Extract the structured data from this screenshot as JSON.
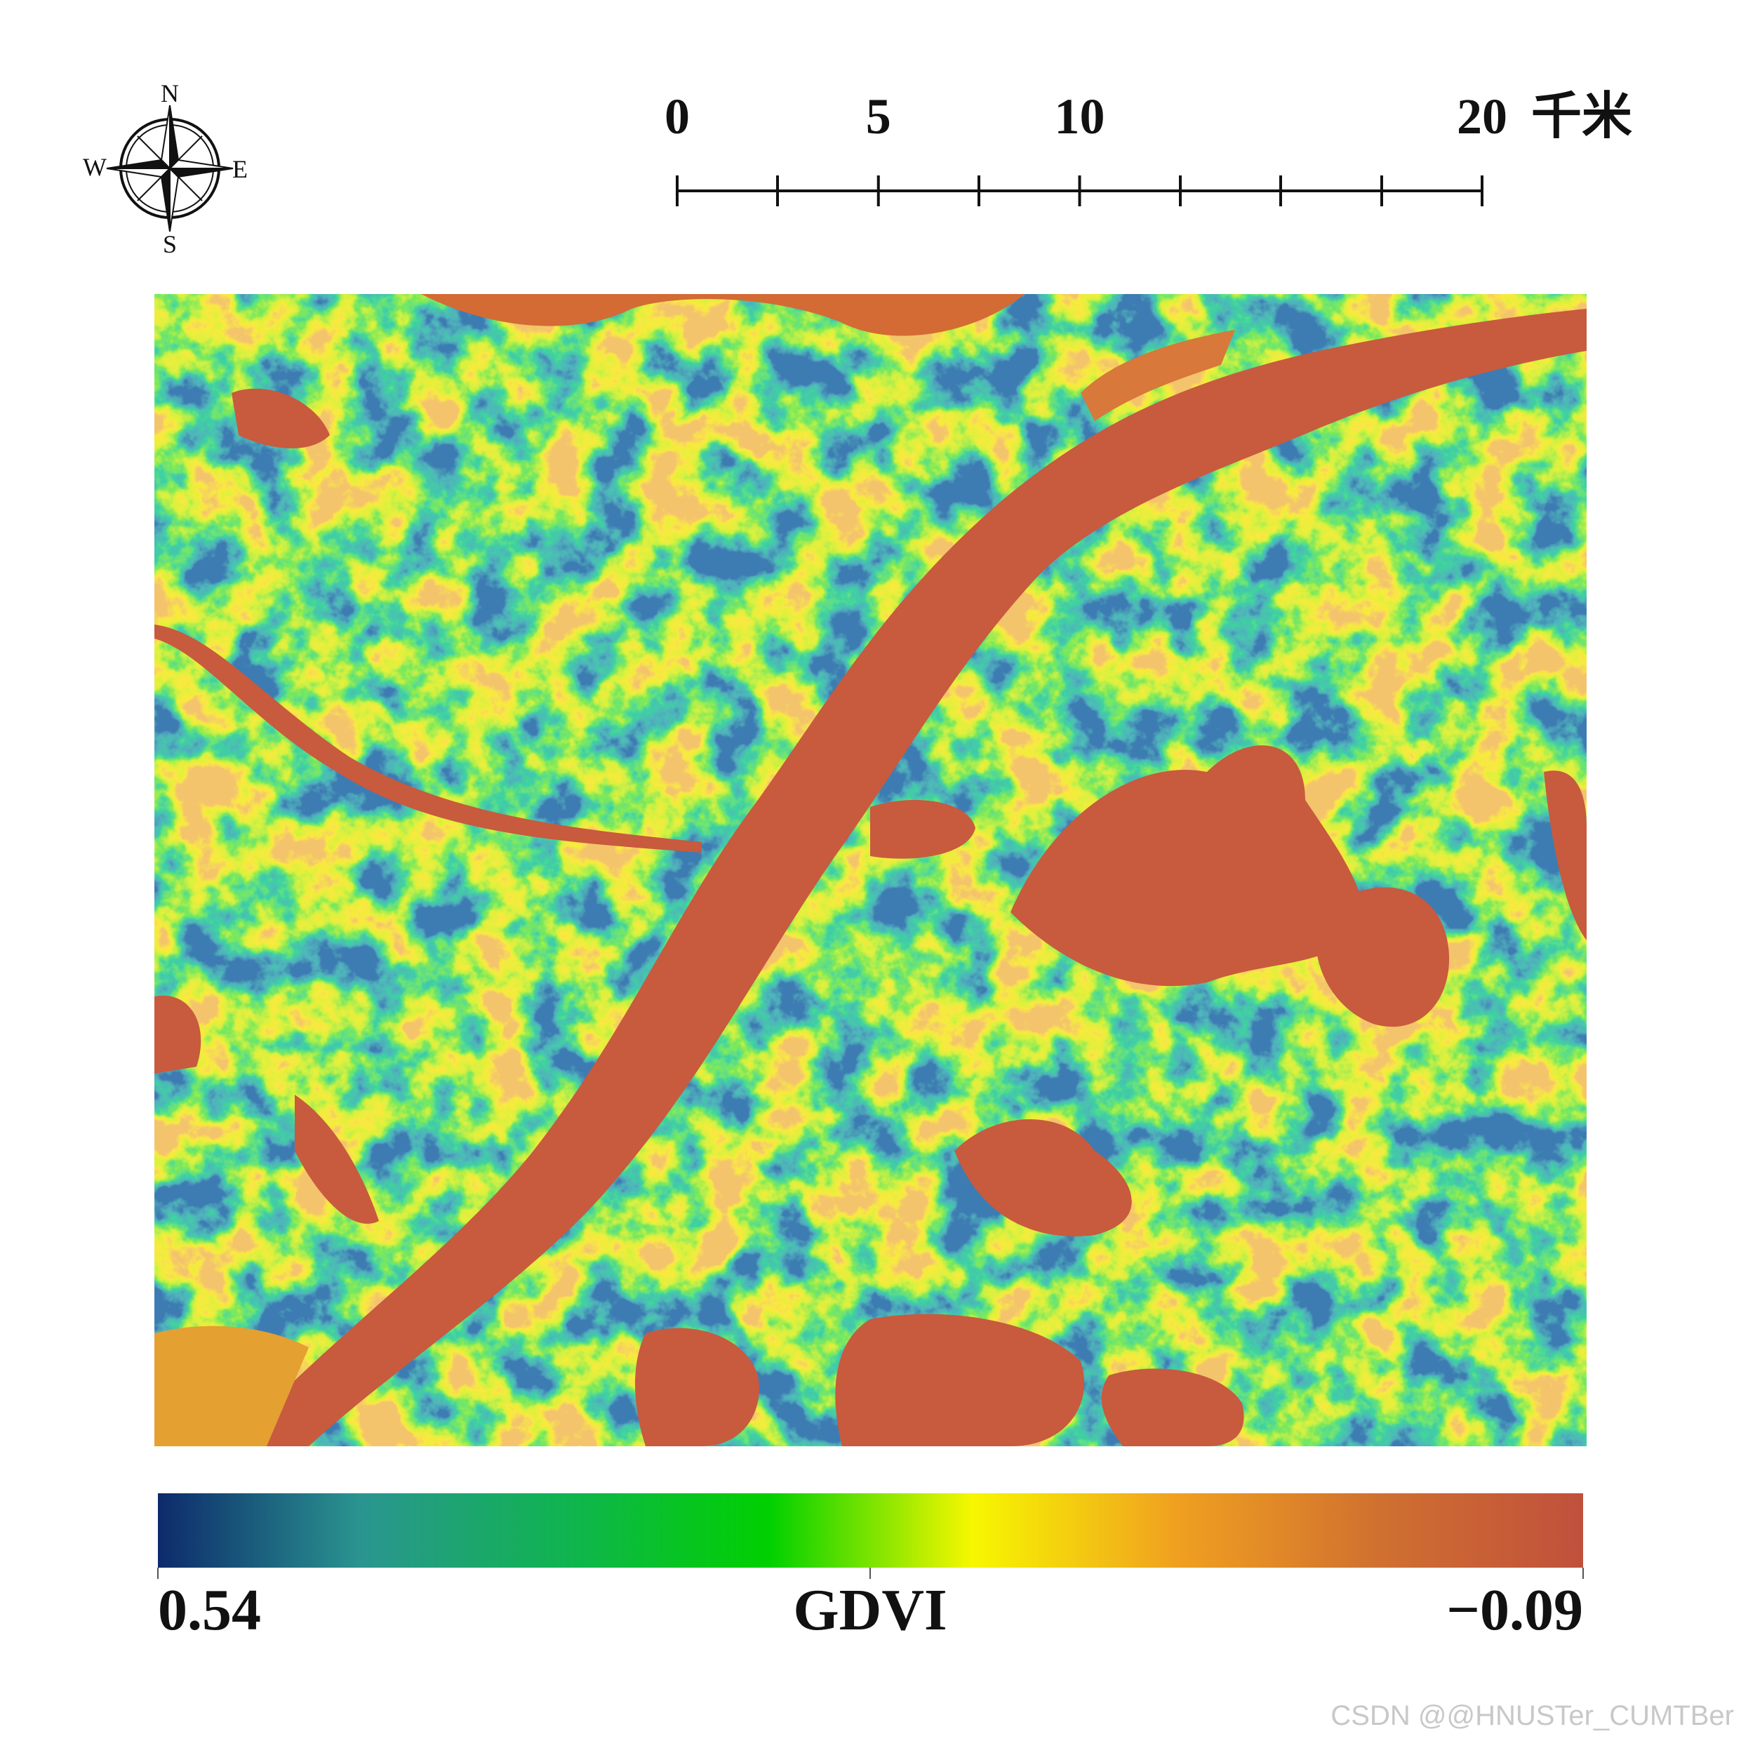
{
  "compass": {
    "north": "N",
    "south": "S",
    "west": "W",
    "east": "E"
  },
  "scale_bar": {
    "ticks": [
      0,
      5,
      10,
      20
    ],
    "unit": "千米"
  },
  "colorbar": {
    "title": "GDVI",
    "min": 0.54,
    "max": {
      "value": -0.09,
      "label": "−0.09"
    },
    "colors": [
      "#0d2a6b",
      "#2a9590",
      "#10b450",
      "#00d000",
      "#f7f700",
      "#f0a020",
      "#d07030",
      "#c0503c"
    ]
  },
  "watermark": "CSDN @@HNUSTer_CUMTBer"
}
